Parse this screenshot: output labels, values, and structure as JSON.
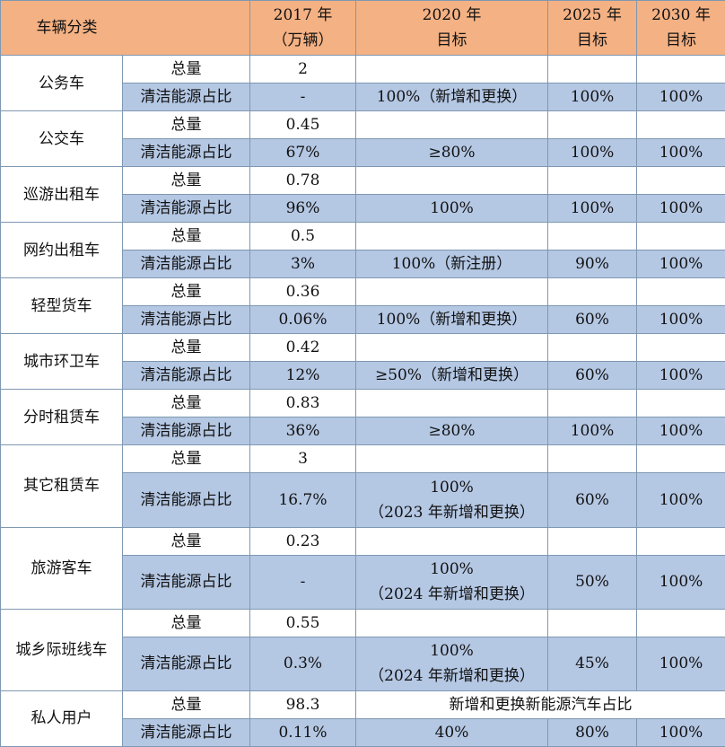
{
  "header": {
    "category": "车辆分类",
    "y2017": [
      "2017 年",
      "（万辆）"
    ],
    "y2020": [
      "2020 年",
      "目标"
    ],
    "y2025": [
      "2025 年",
      "目标"
    ],
    "y2030": [
      "2030 年",
      "目标"
    ]
  },
  "rows": [
    {
      "name": "公务车",
      "total_label": "总量",
      "total": "2",
      "ratio_label": "清洁能源占比",
      "ratio2017": "-",
      "t2020": [
        "100%（新增和更换）"
      ],
      "t2025": "100%",
      "t2030": "100%"
    },
    {
      "name": "公交车",
      "total_label": "总量",
      "total": "0.45",
      "ratio_label": "清洁能源占比",
      "ratio2017": "67%",
      "t2020": [
        "≥80%"
      ],
      "t2025": "100%",
      "t2030": "100%"
    },
    {
      "name": "巡游出租车",
      "total_label": "总量",
      "total": "0.78",
      "ratio_label": "清洁能源占比",
      "ratio2017": "96%",
      "t2020": [
        "100%"
      ],
      "t2025": "100%",
      "t2030": "100%"
    },
    {
      "name": "网约出租车",
      "total_label": "总量",
      "total": "0.5",
      "ratio_label": "清洁能源占比",
      "ratio2017": "3%",
      "t2020": [
        "100%（新注册）"
      ],
      "t2025": "90%",
      "t2030": "100%"
    },
    {
      "name": "轻型货车",
      "total_label": "总量",
      "total": "0.36",
      "ratio_label": "清洁能源占比",
      "ratio2017": "0.06%",
      "t2020": [
        "100%（新增和更换）"
      ],
      "t2025": "60%",
      "t2030": "100%"
    },
    {
      "name": "城市环卫车",
      "total_label": "总量",
      "total": "0.42",
      "ratio_label": "清洁能源占比",
      "ratio2017": "12%",
      "t2020": [
        "≥50%（新增和更换）"
      ],
      "t2025": "60%",
      "t2030": "100%"
    },
    {
      "name": "分时租赁车",
      "total_label": "总量",
      "total": "0.83",
      "ratio_label": "清洁能源占比",
      "ratio2017": "36%",
      "t2020": [
        "≥80%"
      ],
      "t2025": "100%",
      "t2030": "100%"
    },
    {
      "name": "其它租赁车",
      "total_label": "总量",
      "total": "3",
      "ratio_label": "清洁能源占比",
      "ratio2017": "16.7%",
      "t2020": [
        "100%",
        "（2023 年新增和更换）"
      ],
      "t2025": "60%",
      "t2030": "100%"
    },
    {
      "name": "旅游客车",
      "total_label": "总量",
      "total": "0.23",
      "ratio_label": "清洁能源占比",
      "ratio2017": "-",
      "t2020": [
        "100%",
        "（2024 年新增和更换）"
      ],
      "t2025": "50%",
      "t2030": "100%"
    },
    {
      "name": "城乡际班线车",
      "total_label": "总量",
      "total": "0.55",
      "ratio_label": "清洁能源占比",
      "ratio2017": "0.3%",
      "t2020": [
        "100%",
        "（2024 年新增和更换）"
      ],
      "t2025": "45%",
      "t2030": "100%"
    },
    {
      "name": "私人用户",
      "total_label": "总量",
      "total": "98.3",
      "total_note": "新增和更换新能源汽车占比",
      "ratio_label": "清洁能源占比",
      "ratio2017": "0.11%",
      "t2020": [
        "40%"
      ],
      "t2025": "80%",
      "t2030": "100%"
    }
  ]
}
